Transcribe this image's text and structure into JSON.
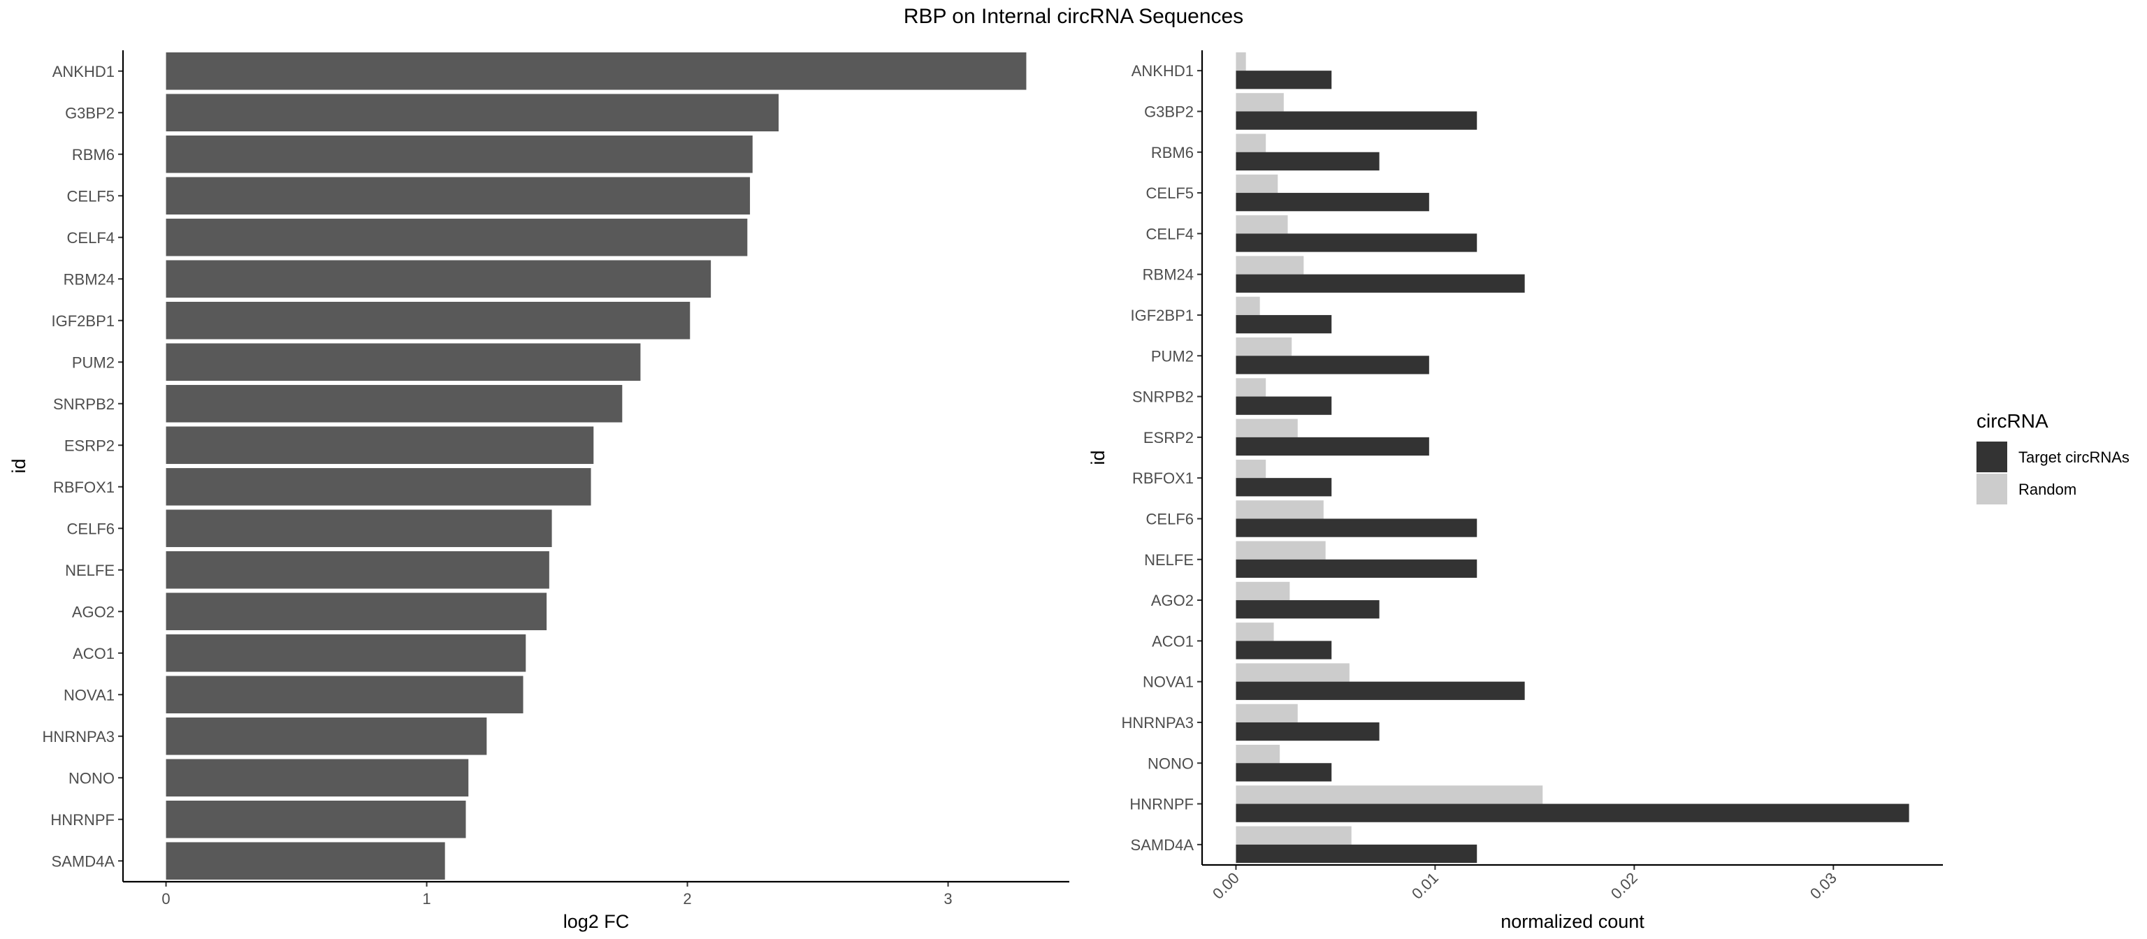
{
  "title": "RBP on Internal circRNA Sequences",
  "colors": {
    "bar_left": "#595959",
    "target": "#333333",
    "random": "#cccccc",
    "axis": "#000000",
    "tick_text": "#4d4d4d"
  },
  "chart_data": [
    {
      "type": "bar",
      "orientation": "horizontal",
      "categories": [
        "ANKHD1",
        "G3BP2",
        "RBM6",
        "CELF5",
        "CELF4",
        "RBM24",
        "IGF2BP1",
        "PUM2",
        "SNRPB2",
        "ESRP2",
        "RBFOX1",
        "CELF6",
        "NELFE",
        "AGO2",
        "ACO1",
        "NOVA1",
        "HNRNPA3",
        "NONO",
        "HNRNPF",
        "SAMD4A"
      ],
      "values": [
        3.3,
        2.35,
        2.25,
        2.24,
        2.23,
        2.09,
        2.01,
        1.82,
        1.75,
        1.64,
        1.63,
        1.48,
        1.47,
        1.46,
        1.38,
        1.37,
        1.23,
        1.16,
        1.15,
        1.07
      ],
      "xlabel": "log2 FC",
      "ylabel": "id",
      "xlim": [
        -0.165,
        3.465
      ],
      "xticks": [
        "0",
        "1",
        "2",
        "3"
      ],
      "grid": false
    },
    {
      "type": "bar",
      "orientation": "horizontal",
      "grouped": true,
      "categories": [
        "ANKHD1",
        "G3BP2",
        "RBM6",
        "CELF5",
        "CELF4",
        "RBM24",
        "IGF2BP1",
        "PUM2",
        "SNRPB2",
        "ESRP2",
        "RBFOX1",
        "CELF6",
        "NELFE",
        "AGO2",
        "ACO1",
        "NOVA1",
        "HNRNPA3",
        "NONO",
        "HNRNPF",
        "SAMD4A"
      ],
      "series": [
        {
          "name": "Target circRNAs",
          "values": [
            0.0048,
            0.0121,
            0.0072,
            0.0097,
            0.0121,
            0.0145,
            0.0048,
            0.0097,
            0.0048,
            0.0097,
            0.0048,
            0.0121,
            0.0121,
            0.0072,
            0.0048,
            0.0145,
            0.0072,
            0.0048,
            0.0338,
            0.0121
          ]
        },
        {
          "name": "Random",
          "values": [
            0.0005,
            0.0024,
            0.0015,
            0.0021,
            0.0026,
            0.0034,
            0.0012,
            0.0028,
            0.0015,
            0.0031,
            0.0015,
            0.0044,
            0.0045,
            0.0027,
            0.0019,
            0.0057,
            0.0031,
            0.0022,
            0.0154,
            0.0058
          ]
        }
      ],
      "xlabel": "normalized count",
      "ylabel": "id",
      "xlim": [
        -0.0017,
        0.0355
      ],
      "xticks": [
        "0.00",
        "0.01",
        "0.02",
        "0.03"
      ],
      "grid": false,
      "legend": {
        "title": "circRNA",
        "position": "right"
      }
    }
  ]
}
